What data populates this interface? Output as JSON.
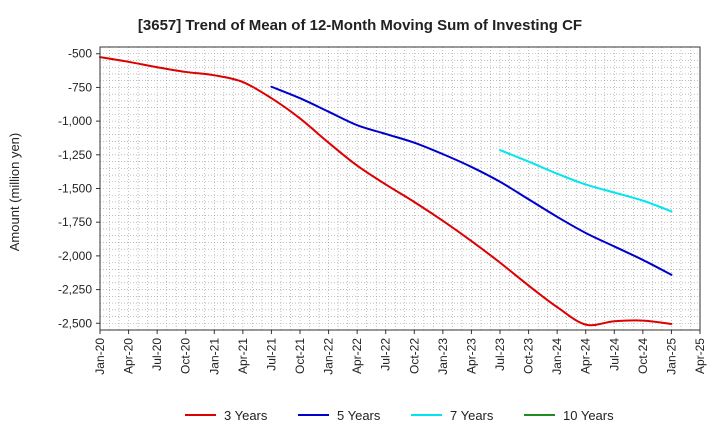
{
  "chart_data": {
    "type": "line",
    "title": "[3657]  Trend of Mean of 12-Month Moving Sum of Investing CF",
    "xlabel": "",
    "ylabel": "Amount (million yen)",
    "ylim": [
      -2550,
      -450
    ],
    "yticks": [
      -500,
      -750,
      -1000,
      -1250,
      -1500,
      -1750,
      -2000,
      -2250,
      -2500
    ],
    "ytick_labels": [
      "-500",
      "-750",
      "-1,000",
      "-1,250",
      "-1,500",
      "-1,750",
      "-2,000",
      "-2,250",
      "-2,500"
    ],
    "x_start": "Jan-20",
    "x_end": "Apr-25",
    "xtick_labels": [
      "Jan-20",
      "Apr-20",
      "Jul-20",
      "Oct-20",
      "Jan-21",
      "Apr-21",
      "Jul-21",
      "Oct-21",
      "Jan-22",
      "Apr-22",
      "Jul-22",
      "Oct-22",
      "Jan-23",
      "Apr-23",
      "Jul-23",
      "Oct-23",
      "Jan-24",
      "Apr-24",
      "Jul-24",
      "Oct-24",
      "Jan-25",
      "Apr-25"
    ],
    "grid": true,
    "legend_position": "bottom",
    "series": [
      {
        "name": "3 Years",
        "color": "#dd0000",
        "x": [
          0,
          3,
          6,
          9,
          12,
          15,
          18,
          21,
          24,
          27,
          30,
          33,
          36,
          39,
          42,
          45,
          48,
          51,
          54,
          57,
          60
        ],
        "values": [
          -525,
          -560,
          -600,
          -635,
          -660,
          -710,
          -830,
          -980,
          -1160,
          -1330,
          -1470,
          -1600,
          -1740,
          -1890,
          -2050,
          -2220,
          -2380,
          -2510,
          -2485,
          -2480,
          -2505
        ]
      },
      {
        "name": "5 Years",
        "color": "#0000cc",
        "x": [
          18,
          21,
          24,
          27,
          30,
          33,
          36,
          39,
          42,
          45,
          48,
          51,
          54,
          57,
          60
        ],
        "values": [
          -745,
          -830,
          -930,
          -1030,
          -1095,
          -1160,
          -1245,
          -1340,
          -1450,
          -1580,
          -1710,
          -1830,
          -1930,
          -2030,
          -2140
        ]
      },
      {
        "name": "7 Years",
        "color": "#00e5ee",
        "x": [
          42,
          45,
          48,
          51,
          54,
          57,
          60
        ],
        "values": [
          -1215,
          -1300,
          -1390,
          -1470,
          -1530,
          -1590,
          -1670
        ]
      },
      {
        "name": "10 Years",
        "color": "#228b22",
        "x": [],
        "values": []
      }
    ]
  }
}
